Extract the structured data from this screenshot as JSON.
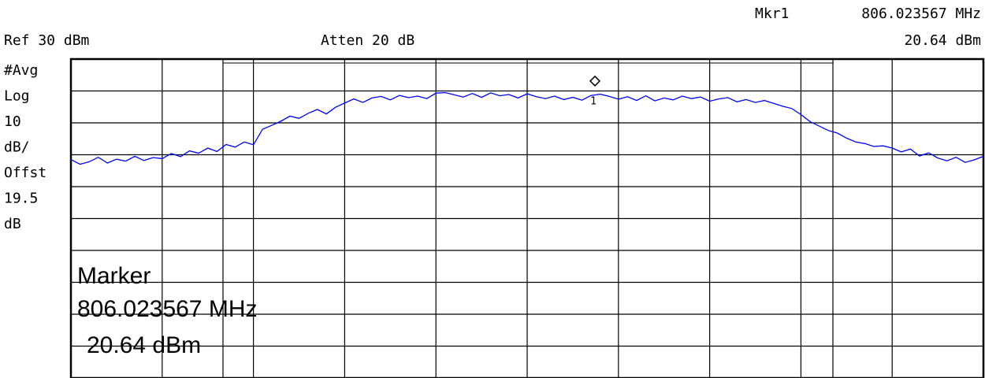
{
  "chart_data": {
    "type": "line",
    "header": {
      "ref": "Ref 30 dBm",
      "atten": "Atten 20 dB",
      "marker_name": "Mkr1"
    },
    "side_labels": [
      "#Avg",
      "Log",
      "10",
      "dB/",
      "Offst",
      "19.5",
      "dB"
    ],
    "marker": {
      "label": "1",
      "title": "Marker",
      "frequency": "806.023567 MHz",
      "value": 20.64,
      "value_label": "20.64 dBm"
    },
    "xlim": [
      0,
      100
    ],
    "xticks": [
      0,
      10,
      20,
      30,
      40,
      50,
      60,
      70,
      80,
      90,
      100
    ],
    "ylim": [
      -70,
      30
    ],
    "yticks": [
      -70,
      -60,
      -50,
      -40,
      -30,
      -20,
      -10,
      0,
      10,
      20,
      30
    ],
    "grid": true,
    "series": [
      {
        "color": "#0000ff",
        "values": [
          -1.5,
          -3.0,
          -2.2,
          -0.8,
          -2.6,
          -1.4,
          -2.0,
          -0.5,
          -1.8,
          -0.9,
          -1.2,
          0.4,
          -0.6,
          1.2,
          0.5,
          2.1,
          1.0,
          3.2,
          2.4,
          4.0,
          3.1,
          8.0,
          9.2,
          10.5,
          12.1,
          11.4,
          13.0,
          14.2,
          12.8,
          14.9,
          16.2,
          17.5,
          16.4,
          17.8,
          18.3,
          17.2,
          18.6,
          17.9,
          18.4,
          17.6,
          19.3,
          19.5,
          18.8,
          18.1,
          19.2,
          18.0,
          19.4,
          18.5,
          18.9,
          17.8,
          19.1,
          18.2,
          17.6,
          18.4,
          17.3,
          18.0,
          17.1,
          18.6,
          19.0,
          18.3,
          17.4,
          18.2,
          17.0,
          18.5,
          16.9,
          17.8,
          17.2,
          18.4,
          17.6,
          18.1,
          16.8,
          17.5,
          17.9,
          16.6,
          17.3,
          16.4,
          17.0,
          16.1,
          15.2,
          14.5,
          12.6,
          10.4,
          9.0,
          7.6,
          6.8,
          5.2,
          4.0,
          3.5,
          2.6,
          2.8,
          2.1,
          0.9,
          1.8,
          -0.4,
          0.6,
          -1.0,
          -1.9,
          -0.8,
          -2.4,
          -1.6,
          -0.5
        ]
      }
    ]
  }
}
